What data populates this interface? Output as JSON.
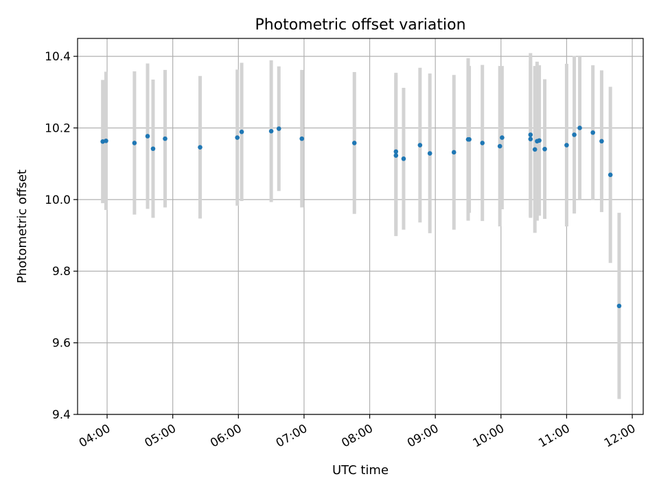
{
  "chart_data": {
    "type": "scatter",
    "title": "Photometric offset variation",
    "xlabel": "UTC time",
    "ylabel": "Photometric offset",
    "grid": true,
    "xlim": [
      "03:33",
      "12:10"
    ],
    "ylim": [
      9.4,
      10.45
    ],
    "x_ticks": [
      "04:00",
      "05:00",
      "06:00",
      "07:00",
      "08:00",
      "09:00",
      "10:00",
      "11:00",
      "12:00"
    ],
    "y_ticks": [
      "9.4",
      "9.6",
      "9.8",
      "10.0",
      "10.2",
      "10.4"
    ],
    "colors": {
      "marker": "#1f77b4",
      "errorbar": "#d3d3d3",
      "grid": "#b0b0b0"
    },
    "points": [
      {
        "time": "03:56",
        "y": 10.162,
        "yerr": 0.172
      },
      {
        "time": "03:59",
        "y": 10.164,
        "yerr": 0.193
      },
      {
        "time": "04:25",
        "y": 10.158,
        "yerr": 0.2
      },
      {
        "time": "04:37",
        "y": 10.177,
        "yerr": 0.203
      },
      {
        "time": "04:42",
        "y": 10.142,
        "yerr": 0.193
      },
      {
        "time": "04:53",
        "y": 10.17,
        "yerr": 0.192
      },
      {
        "time": "05:25",
        "y": 10.146,
        "yerr": 0.199
      },
      {
        "time": "05:59",
        "y": 10.173,
        "yerr": 0.19
      },
      {
        "time": "06:03",
        "y": 10.189,
        "yerr": 0.193
      },
      {
        "time": "06:30",
        "y": 10.191,
        "yerr": 0.198
      },
      {
        "time": "06:37",
        "y": 10.198,
        "yerr": 0.174
      },
      {
        "time": "06:58",
        "y": 10.17,
        "yerr": 0.192
      },
      {
        "time": "07:46",
        "y": 10.158,
        "yerr": 0.198
      },
      {
        "time": "08:24",
        "y": 10.134,
        "yerr": 0.22
      },
      {
        "time": "08:24",
        "y": 10.123,
        "yerr": 0.225
      },
      {
        "time": "08:31",
        "y": 10.114,
        "yerr": 0.198
      },
      {
        "time": "08:46",
        "y": 10.152,
        "yerr": 0.216
      },
      {
        "time": "08:55",
        "y": 10.129,
        "yerr": 0.223
      },
      {
        "time": "09:17",
        "y": 10.132,
        "yerr": 0.216
      },
      {
        "time": "09:30",
        "y": 10.168,
        "yerr": 0.227
      },
      {
        "time": "09:31",
        "y": 10.168,
        "yerr": 0.205
      },
      {
        "time": "09:43",
        "y": 10.158,
        "yerr": 0.218
      },
      {
        "time": "09:59",
        "y": 10.149,
        "yerr": 0.224
      },
      {
        "time": "10:01",
        "y": 10.173,
        "yerr": 0.2
      },
      {
        "time": "10:27",
        "y": 10.181,
        "yerr": 0.228
      },
      {
        "time": "10:27",
        "y": 10.169,
        "yerr": 0.22
      },
      {
        "time": "10:31",
        "y": 10.14,
        "yerr": 0.233
      },
      {
        "time": "10:33",
        "y": 10.163,
        "yerr": 0.222
      },
      {
        "time": "10:35",
        "y": 10.165,
        "yerr": 0.21
      },
      {
        "time": "10:40",
        "y": 10.141,
        "yerr": 0.195
      },
      {
        "time": "11:00",
        "y": 10.152,
        "yerr": 0.227
      },
      {
        "time": "11:07",
        "y": 10.181,
        "yerr": 0.22
      },
      {
        "time": "11:12",
        "y": 10.2,
        "yerr": 0.2
      },
      {
        "time": "11:24",
        "y": 10.187,
        "yerr": 0.188
      },
      {
        "time": "11:32",
        "y": 10.163,
        "yerr": 0.198
      },
      {
        "time": "11:40",
        "y": 10.069,
        "yerr": 0.246
      },
      {
        "time": "11:48",
        "y": 9.703,
        "yerr": 0.26
      }
    ]
  }
}
